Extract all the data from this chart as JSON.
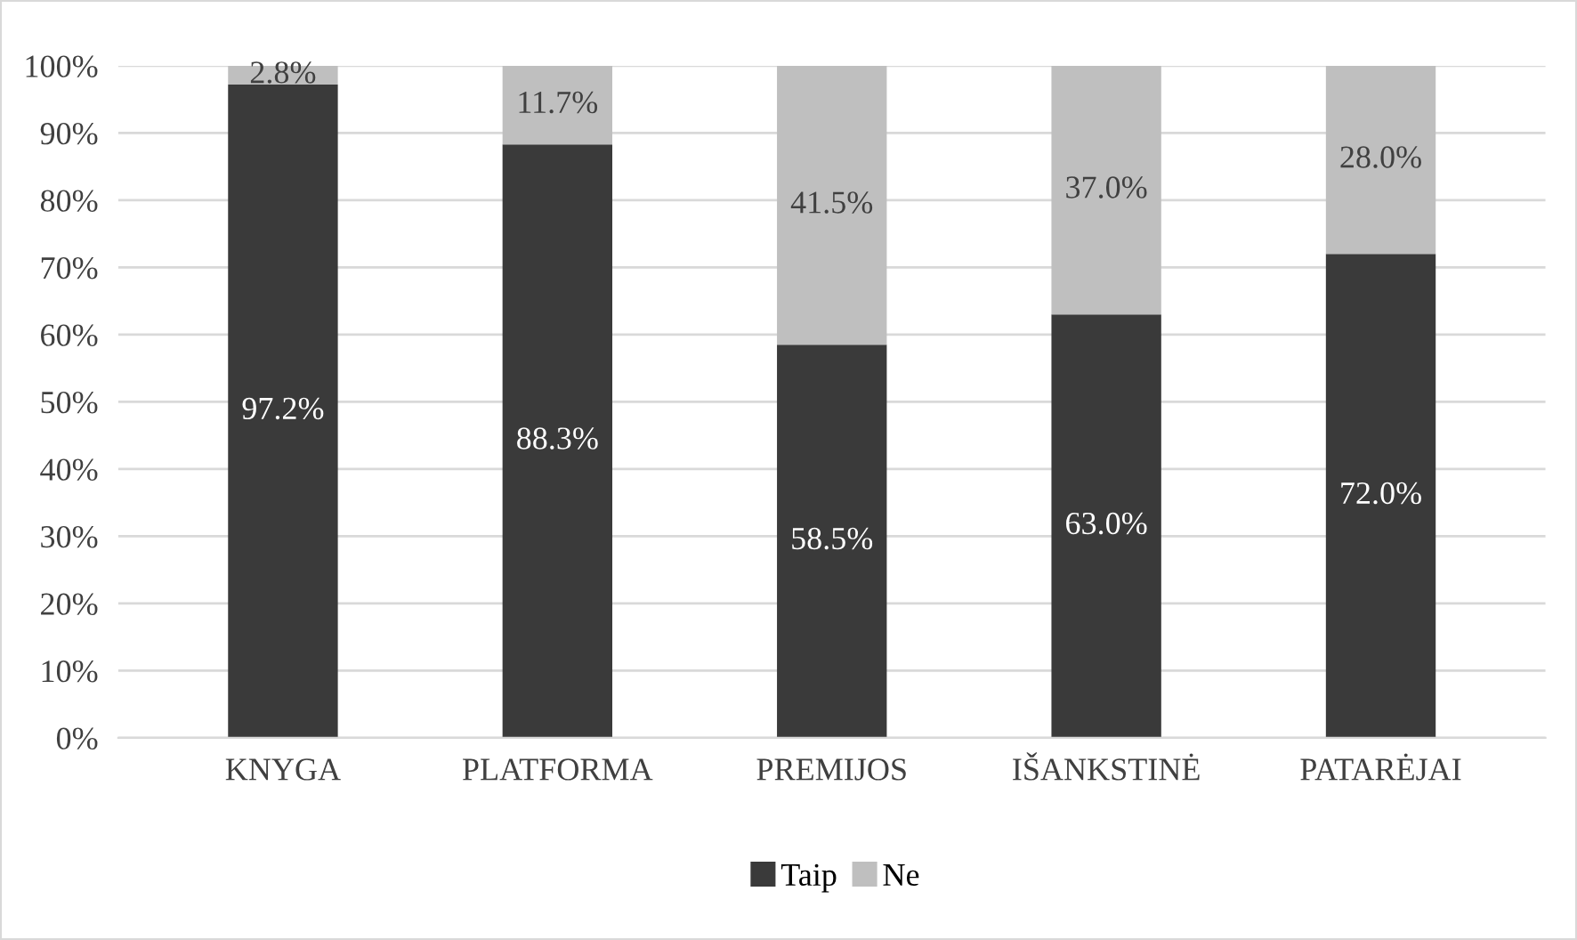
{
  "chart_data": {
    "type": "bar",
    "stacked": true,
    "categories": [
      "KNYGA",
      "PLATFORMA",
      "PREMIJOS",
      "IŠANKSTINĖ",
      "PATARĖJAI"
    ],
    "series": [
      {
        "name": "Taip",
        "color": "#3a3a3a",
        "values": [
          97.2,
          88.3,
          58.5,
          63.0,
          72.0
        ],
        "value_labels": [
          "97.2%",
          "88.3%",
          "58.5%",
          "63.0%",
          "72.0%"
        ]
      },
      {
        "name": "Ne",
        "color": "#bfbfbf",
        "values": [
          2.8,
          11.7,
          41.5,
          37.0,
          28.0
        ],
        "value_labels": [
          "2.8%",
          "11.7%",
          "41.5%",
          "37.0%",
          "28.0%"
        ]
      }
    ],
    "ylim": [
      0,
      100
    ],
    "yticks": [
      {
        "value": 0,
        "label": "0%"
      },
      {
        "value": 10,
        "label": "10%"
      },
      {
        "value": 20,
        "label": "20%"
      },
      {
        "value": 30,
        "label": "30%"
      },
      {
        "value": 40,
        "label": "40%"
      },
      {
        "value": 50,
        "label": "50%"
      },
      {
        "value": 60,
        "label": "60%"
      },
      {
        "value": 70,
        "label": "70%"
      },
      {
        "value": 80,
        "label": "80%"
      },
      {
        "value": 90,
        "label": "90%"
      },
      {
        "value": 100,
        "label": "100%"
      }
    ],
    "grid": "y",
    "legend": "bottom"
  }
}
